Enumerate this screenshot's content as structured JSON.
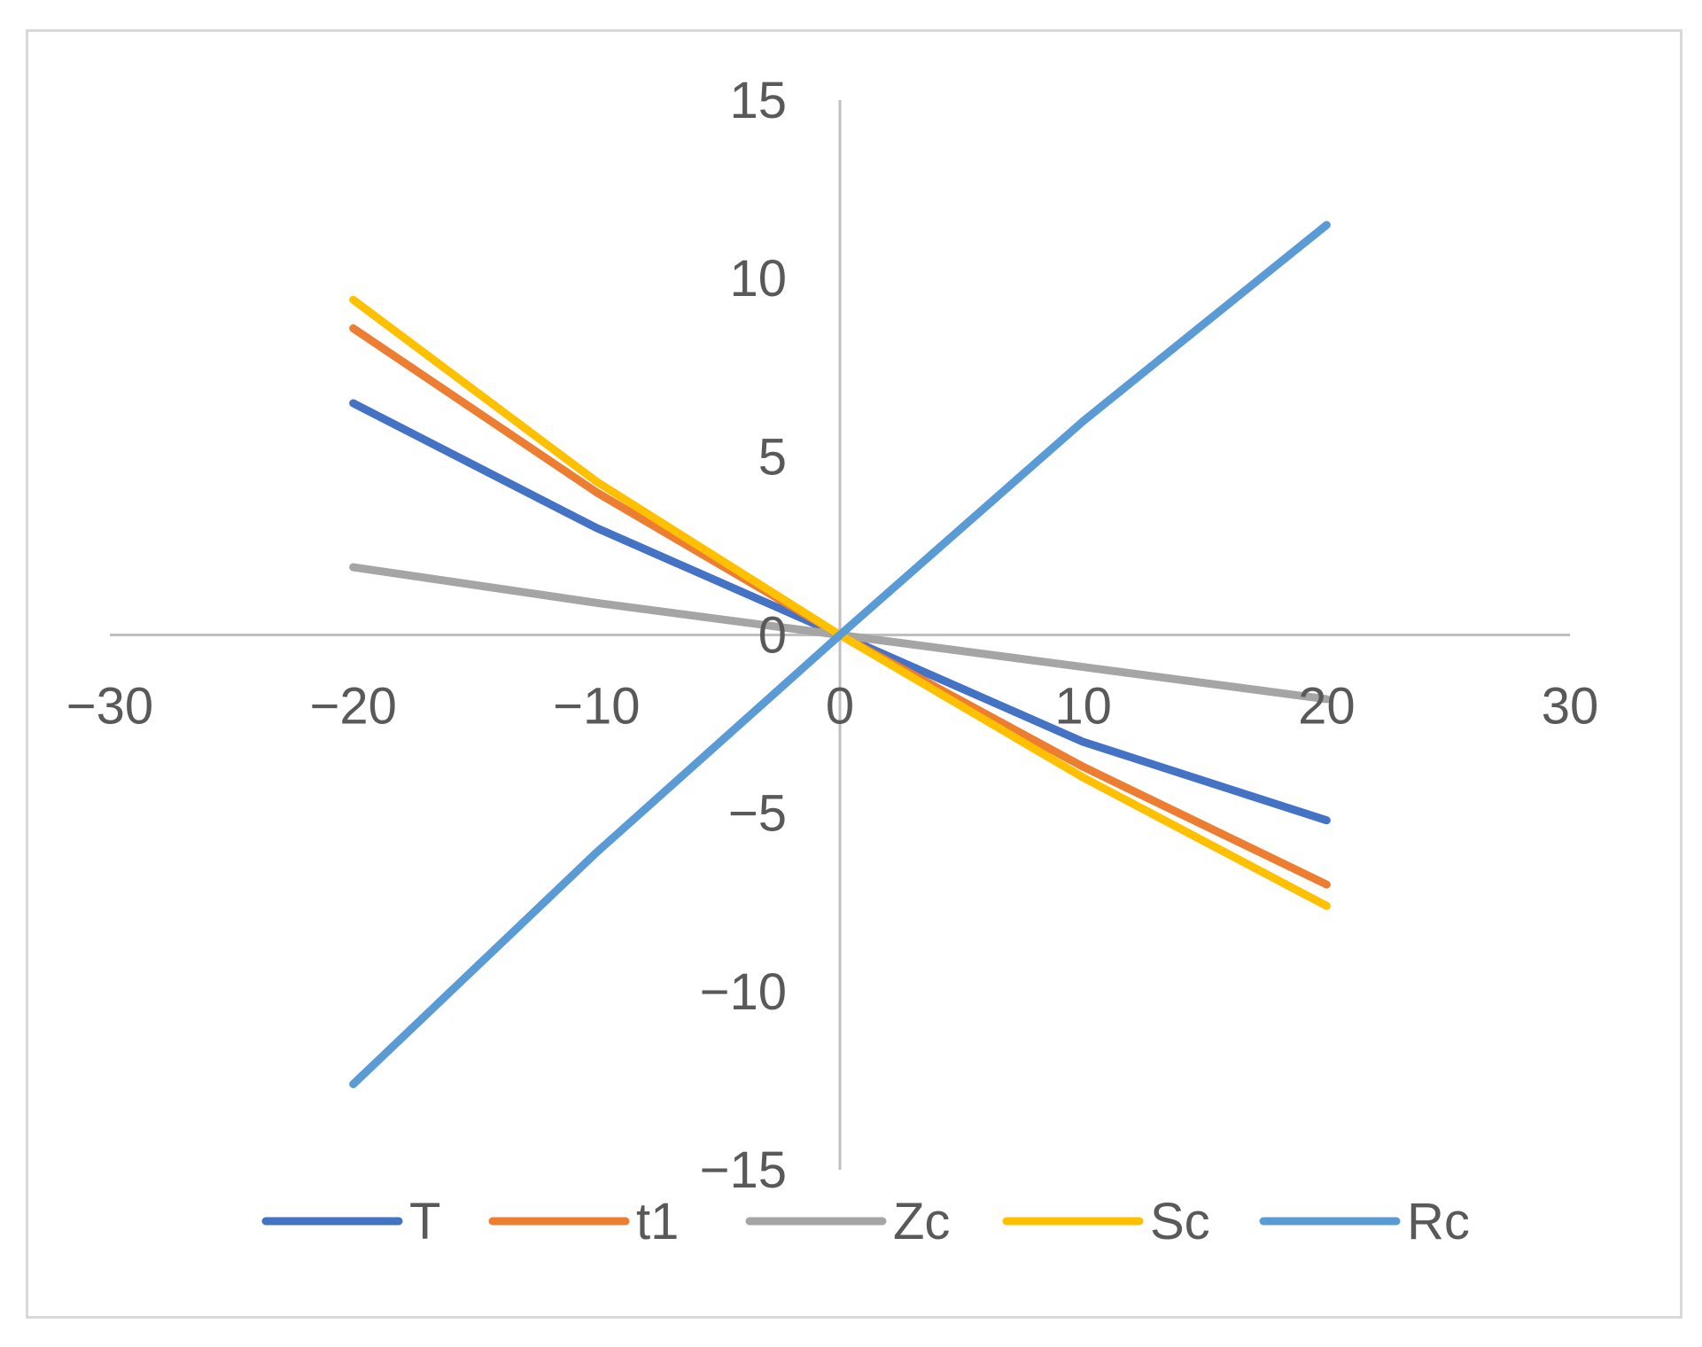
{
  "chart_data": {
    "type": "line",
    "xlim": [
      -30,
      30
    ],
    "ylim": [
      -15,
      15
    ],
    "x_ticks": [
      "−30",
      "−20",
      "−10",
      "0",
      "10",
      "20",
      "30"
    ],
    "y_ticks": [
      "15",
      "10",
      "5",
      "0",
      "−5",
      "−10",
      "−15"
    ],
    "x_tick_values": [
      -30,
      -20,
      -10,
      0,
      10,
      20,
      30
    ],
    "y_tick_values": [
      15,
      10,
      5,
      0,
      -5,
      -10,
      -15
    ],
    "grid": false,
    "legend_position": "bottom",
    "x": [
      -20,
      -10,
      0,
      10,
      20
    ],
    "series": [
      {
        "name": "T",
        "color": "#4472c4",
        "values": [
          6.5,
          3.0,
          0,
          -3.0,
          -5.2
        ]
      },
      {
        "name": "t1",
        "color": "#ed7d31",
        "values": [
          8.6,
          4.0,
          0,
          -3.7,
          -7.0
        ]
      },
      {
        "name": "Zc",
        "color": "#a5a5a5",
        "values": [
          1.9,
          0.9,
          0,
          -0.9,
          -1.8
        ]
      },
      {
        "name": "Sc",
        "color": "#ffc000",
        "values": [
          9.4,
          4.3,
          0,
          -4.0,
          -7.6
        ]
      },
      {
        "name": "Rc",
        "color": "#5b9bd5",
        "values": [
          -12.6,
          -6.1,
          0,
          6.0,
          11.5
        ]
      }
    ]
  }
}
